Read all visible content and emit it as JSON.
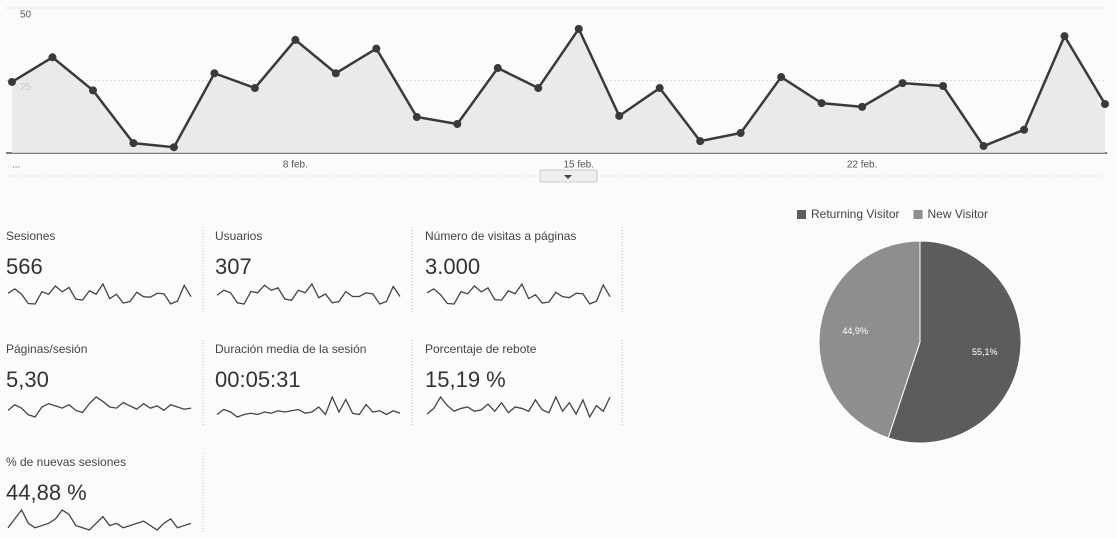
{
  "chart_data": [
    {
      "type": "line",
      "categories": [
        "...",
        null,
        null,
        null,
        null,
        null,
        null,
        "8 feb.",
        null,
        null,
        null,
        null,
        null,
        null,
        "15 feb.",
        null,
        null,
        null,
        null,
        null,
        null,
        "22 feb.",
        null,
        null,
        null,
        null,
        null,
        null
      ],
      "series": [
        {
          "name": "Sesiones",
          "color": "#3a3a3a",
          "values": [
            24.5,
            33,
            21.6,
            3.4,
            2,
            27.5,
            22.4,
            39,
            27.5,
            36,
            12.4,
            10,
            29.3,
            22.4,
            42.8,
            12.8,
            22.4,
            4.1,
            6.9,
            26.2,
            17.2,
            15.9,
            24.1,
            23.1,
            2.4,
            8,
            40.3,
            16.9
          ]
        }
      ],
      "ylim": [
        0,
        50
      ],
      "yticks": [
        25,
        50
      ],
      "grid": true
    },
    {
      "type": "pie",
      "categories": [
        "Returning Visitor",
        "New Visitor"
      ],
      "values": [
        55.1,
        44.9
      ],
      "value_labels": [
        "55,1%",
        "44,9%"
      ],
      "colors": [
        "#5c5c5c",
        "#8e8e8e"
      ],
      "legend": "top"
    }
  ],
  "metrics": [
    {
      "label": "Sesiones",
      "value": "566",
      "spark": [
        24,
        33,
        22,
        3,
        2,
        27,
        22,
        39,
        27,
        36,
        12,
        10,
        29,
        22,
        43,
        13,
        22,
        4,
        7,
        26,
        17,
        16,
        24,
        23,
        2,
        8,
        40,
        17
      ]
    },
    {
      "label": "Usuarios",
      "value": "307",
      "spark": [
        10,
        14,
        12,
        4,
        3,
        13,
        12,
        18,
        14,
        16,
        7,
        6,
        14,
        12,
        19,
        8,
        11,
        4,
        5,
        13,
        9,
        9,
        12,
        11,
        3,
        5,
        17,
        9
      ]
    },
    {
      "label": "Número de visitas a páginas",
      "value": "3.000",
      "spark": [
        130,
        170,
        110,
        20,
        15,
        140,
        120,
        200,
        140,
        180,
        60,
        55,
        150,
        120,
        220,
        70,
        110,
        25,
        35,
        135,
        90,
        80,
        125,
        120,
        15,
        45,
        210,
        90
      ]
    },
    {
      "label": "Páginas/sesión",
      "value": "5,30",
      "spark": [
        5,
        5.5,
        5.2,
        4.6,
        4.4,
        5.3,
        5.6,
        5.4,
        5.2,
        5.5,
        5,
        4.8,
        5.6,
        6.2,
        5.8,
        5.3,
        5.2,
        5.7,
        5.4,
        5.1,
        5.6,
        5.2,
        5.4,
        5,
        5.5,
        5.3,
        5.1,
        5.2
      ]
    },
    {
      "label": "Duración media de la sesión",
      "value": "00:05:31",
      "spark": [
        300,
        340,
        320,
        280,
        300,
        310,
        300,
        320,
        310,
        330,
        320,
        330,
        340,
        310,
        320,
        360,
        300,
        440,
        320,
        420,
        310,
        300,
        380,
        320,
        330,
        300,
        330,
        310
      ]
    },
    {
      "label": "Porcentaje de rebote",
      "value": "15,19 %",
      "spark": [
        10,
        14,
        22,
        16,
        12,
        14,
        15,
        12,
        13,
        17,
        12,
        18,
        11,
        15,
        14,
        12,
        20,
        13,
        11,
        22,
        12,
        18,
        10,
        20,
        8,
        16,
        12,
        22
      ]
    },
    {
      "label": "% de nuevas sesiones",
      "value": "44,88 %",
      "spark": [
        42,
        46,
        50,
        44,
        42,
        43,
        44,
        46,
        50,
        48,
        43,
        42,
        41,
        44,
        47,
        43,
        44,
        42,
        43,
        44,
        45,
        43,
        41,
        44,
        46,
        42,
        43,
        44
      ]
    }
  ]
}
